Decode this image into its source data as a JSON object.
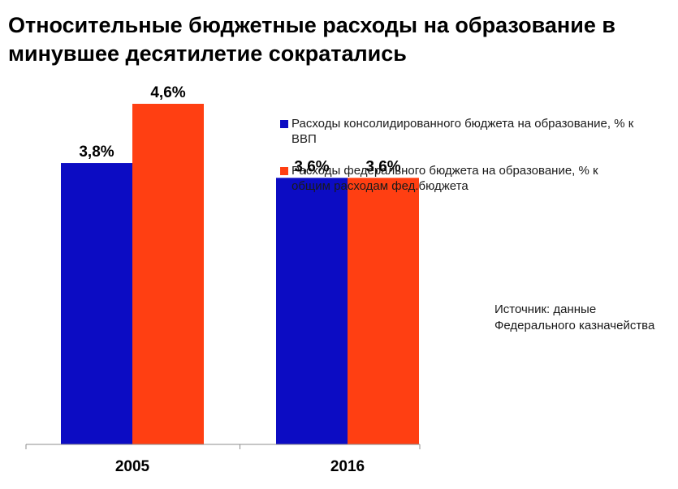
{
  "chart_data": {
    "type": "bar",
    "title": "Относительные бюджетные расходы на образование в минувшее десятилетие сократались",
    "categories": [
      "2005",
      "2016"
    ],
    "series": [
      {
        "name": "Расходы консолидированного бюджета на образование, % к ВВП",
        "values": [
          3.8,
          3.6
        ],
        "labels": [
          "3,8%",
          "3,6%"
        ],
        "color": "#0c0cc3"
      },
      {
        "name": "Расходы федерального бюджета на образование, % к общим расходам фед.бюджета",
        "values": [
          4.6,
          3.6
        ],
        "labels": [
          "4,6%",
          "3,6%"
        ],
        "color": "#ff3f12"
      }
    ],
    "ylim": [
      0,
      4.6
    ],
    "grid": false,
    "legend_position": "top-right",
    "source": "Источник: данные\nФедерального казначейства"
  }
}
